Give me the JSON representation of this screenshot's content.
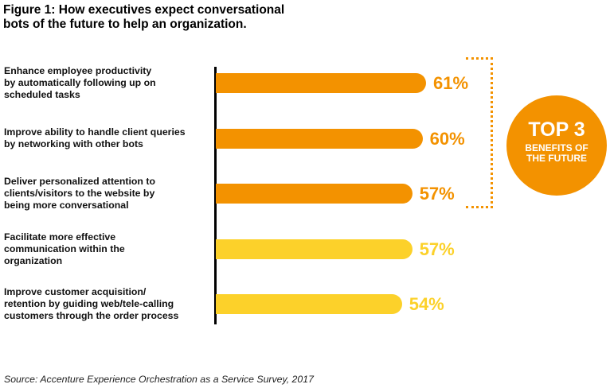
{
  "figure": {
    "title_line1": "Figure 1:  How executives expect conversational",
    "title_line2": "bots of the future to help an organization."
  },
  "badge": {
    "line1": "TOP 3",
    "line2": "BENEFITS OF",
    "line3": "THE FUTURE",
    "color": "#f39200"
  },
  "source": "Source: Accenture Experience Orchestration as a Service Survey, 2017",
  "colors": {
    "top3": "#f39200",
    "others": "#fcd12a"
  },
  "chart_data": {
    "type": "bar",
    "orientation": "horizontal",
    "categories": [
      [
        "Enhance employee productivity",
        "by automatically following up on",
        "scheduled tasks"
      ],
      [
        "Improve ability to handle client queries",
        "by networking with other bots"
      ],
      [
        "Deliver personalized attention to",
        "clients/visitors to the website by",
        "being more conversational"
      ],
      [
        "Facilitate more effective",
        "communication within the",
        "organization"
      ],
      [
        "Improve customer acquisition/",
        "retention by guiding web/tele-calling",
        "customers through the order process"
      ]
    ],
    "values": [
      61,
      60,
      57,
      57,
      54
    ],
    "value_labels": [
      "61%",
      "60%",
      "57%",
      "57%",
      "54%"
    ],
    "highlight_top": 3,
    "xlim": [
      0,
      61
    ],
    "grid": false,
    "title": "",
    "xlabel": "",
    "ylabel": ""
  }
}
